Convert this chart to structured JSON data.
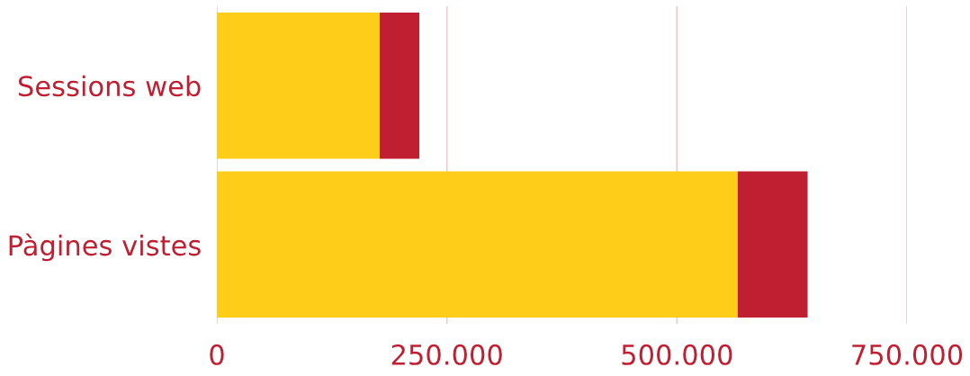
{
  "chart_data": {
    "type": "bar",
    "orientation": "horizontal",
    "stacked": true,
    "categories": [
      "Sessions web",
      "Pàgines vistes"
    ],
    "series": [
      {
        "color": "#fdcd1a",
        "values": [
          177000,
          566000
        ]
      },
      {
        "color": "#c01f31",
        "values": [
          43000,
          76000
        ]
      }
    ],
    "xlim": [
      0,
      750000
    ],
    "xticks": [
      {
        "value": 0,
        "label": "0"
      },
      {
        "value": 250000,
        "label": "250.000"
      },
      {
        "value": 500000,
        "label": "500.000"
      },
      {
        "value": 750000,
        "label": "750.000"
      }
    ],
    "grid": "x",
    "legend": false
  }
}
